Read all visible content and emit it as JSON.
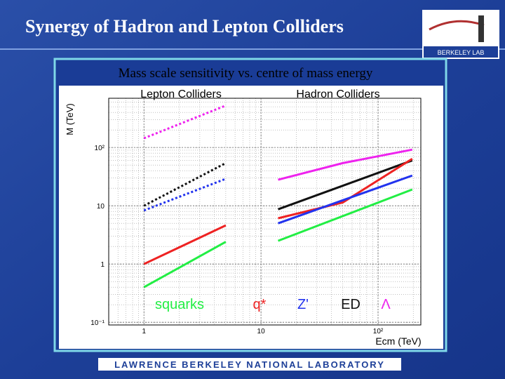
{
  "header": {
    "title": "Synergy of Hadron and Lepton Colliders",
    "logo": "BERKELEY LAB"
  },
  "footer": "LAWRENCE BERKELEY NATIONAL LABORATORY",
  "chart_data": {
    "type": "line",
    "title": "Mass scale sensitivity vs. centre of mass energy",
    "group_labels": [
      "Lepton Colliders",
      "Hadron Colliders"
    ],
    "xlabel": "Ecm (TeV)",
    "ylabel": "M (TeV)",
    "log_x": true,
    "log_y": true,
    "grid": true,
    "xlim": [
      0.5,
      232
    ],
    "ylim": [
      0.09,
      700
    ],
    "xticks": [
      1,
      10,
      {
        "value": 100,
        "label": "10²"
      }
    ],
    "yticks": [
      {
        "value": 0.1,
        "label": "10⁻¹"
      },
      1,
      10,
      {
        "value": 100,
        "label": "10²"
      }
    ],
    "legend": [
      {
        "label": "squarks",
        "color": "#22ee44"
      },
      {
        "label": "q*",
        "color": "#ee2222"
      },
      {
        "label": "Z'",
        "color": "#2233ee"
      },
      {
        "label": "ED",
        "color": "#111111"
      },
      {
        "label": "Λ",
        "color": "#ee22ee"
      }
    ],
    "series": [
      {
        "color": "#ee22ee",
        "dash": true,
        "x": [
          1,
          5
        ],
        "values": [
          144,
          525
        ]
      },
      {
        "color": "#111111",
        "dash": true,
        "x": [
          1,
          5
        ],
        "values": [
          10,
          54
        ]
      },
      {
        "color": "#2233ee",
        "dash": true,
        "x": [
          1,
          5
        ],
        "values": [
          8.3,
          29
        ]
      },
      {
        "color": "#ee2222",
        "dash": false,
        "x": [
          1,
          5
        ],
        "values": [
          1,
          4.6
        ]
      },
      {
        "color": "#22ee44",
        "dash": false,
        "x": [
          1,
          5
        ],
        "values": [
          0.4,
          2.4
        ]
      },
      {
        "color": "#ee22ee",
        "dash": false,
        "x": [
          14,
          50,
          196
        ],
        "values": [
          28,
          54,
          92
        ]
      },
      {
        "color": "#111111",
        "dash": false,
        "x": [
          14,
          196
        ],
        "values": [
          8.7,
          60
        ]
      },
      {
        "color": "#ee2222",
        "dash": false,
        "x": [
          14,
          50,
          196
        ],
        "values": [
          6.1,
          11.4,
          64
        ]
      },
      {
        "color": "#2233ee",
        "dash": false,
        "x": [
          14,
          196
        ],
        "values": [
          5,
          33
        ]
      },
      {
        "color": "#22ee44",
        "dash": false,
        "x": [
          14,
          196
        ],
        "values": [
          2.5,
          19
        ]
      }
    ]
  }
}
